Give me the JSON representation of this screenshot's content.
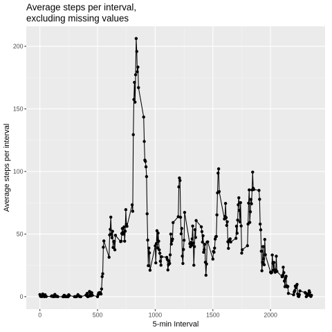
{
  "chart_data": {
    "type": "line",
    "title": "Average steps per interval,",
    "subtitle": "excluding missing values",
    "xlabel": "5-min Interval",
    "ylabel": "Average steps per interval",
    "xlim": [
      -118,
      2473
    ],
    "ylim": [
      -10,
      216
    ],
    "xticks": [
      "0",
      "500",
      "1000",
      "1500",
      "2000"
    ],
    "yticks": [
      "0",
      "50",
      "100",
      "150",
      "200"
    ],
    "xtick_values": [
      0,
      500,
      1000,
      1500,
      2000
    ],
    "ytick_values": [
      0,
      50,
      100,
      150,
      200
    ],
    "grid": true,
    "legend": "none",
    "colors": {
      "panel": "#ebebeb",
      "grid_major": "#ffffff",
      "grid_minor": "#f5f5f5",
      "series": "#000000",
      "tick": "#333333",
      "tick_label": "#4d4d4d"
    },
    "series": [
      {
        "points": [
          [
            0,
            1.7
          ],
          [
            5,
            0.3
          ],
          [
            10,
            0.1
          ],
          [
            15,
            0.2
          ],
          [
            20,
            0.1
          ],
          [
            25,
            2.1
          ],
          [
            30,
            0.5
          ],
          [
            35,
            0.9
          ],
          [
            40,
            0.0
          ],
          [
            45,
            1.5
          ],
          [
            50,
            0.3
          ],
          [
            55,
            0.1
          ],
          [
            100,
            0.3
          ],
          [
            105,
            0.7
          ],
          [
            110,
            0.2
          ],
          [
            115,
            0.3
          ],
          [
            120,
            0.0
          ],
          [
            125,
            1.1
          ],
          [
            130,
            1.8
          ],
          [
            135,
            0.2
          ],
          [
            140,
            0.2
          ],
          [
            145,
            0.4
          ],
          [
            150,
            0.3
          ],
          [
            155,
            0.0
          ],
          [
            200,
            0.0
          ],
          [
            205,
            0.0
          ],
          [
            210,
            1.1
          ],
          [
            215,
            0.9
          ],
          [
            220,
            0.0
          ],
          [
            225,
            0.1
          ],
          [
            230,
            0.0
          ],
          [
            235,
            0.2
          ],
          [
            240,
            0.0
          ],
          [
            245,
            0.0
          ],
          [
            250,
            1.5
          ],
          [
            255,
            0.9
          ],
          [
            300,
            0.0
          ],
          [
            305,
            0.0
          ],
          [
            310,
            0.0
          ],
          [
            315,
            0.0
          ],
          [
            320,
            0.2
          ],
          [
            325,
            0.6
          ],
          [
            330,
            1.6
          ],
          [
            335,
            0.6
          ],
          [
            340,
            0.5
          ],
          [
            345,
            0.1
          ],
          [
            350,
            0.0
          ],
          [
            355,
            0.0
          ],
          [
            400,
            1.2
          ],
          [
            405,
            0.9
          ],
          [
            410,
            2.6
          ],
          [
            415,
            0.0
          ],
          [
            420,
            0.3
          ],
          [
            425,
            0.4
          ],
          [
            430,
            4.1
          ],
          [
            435,
            0.7
          ],
          [
            440,
            3.5
          ],
          [
            445,
            0.8
          ],
          [
            450,
            3.1
          ],
          [
            455,
            1.1
          ],
          [
            500,
            0.0
          ],
          [
            505,
            1.6
          ],
          [
            510,
            3.0
          ],
          [
            515,
            2.2
          ],
          [
            520,
            3.3
          ],
          [
            525,
            3.0
          ],
          [
            530,
            2.1
          ],
          [
            535,
            6.1
          ],
          [
            540,
            16.0
          ],
          [
            545,
            18.3
          ],
          [
            550,
            39.5
          ],
          [
            555,
            44.5
          ],
          [
            600,
            31.5
          ],
          [
            605,
            49.3
          ],
          [
            610,
            53.8
          ],
          [
            615,
            63.5
          ],
          [
            620,
            50.0
          ],
          [
            625,
            47.1
          ],
          [
            630,
            52.2
          ],
          [
            635,
            39.3
          ],
          [
            640,
            44.0
          ],
          [
            645,
            44.2
          ],
          [
            650,
            37.4
          ],
          [
            655,
            49.0
          ],
          [
            700,
            44.0
          ],
          [
            705,
            44.3
          ],
          [
            710,
            50.5
          ],
          [
            715,
            54.5
          ],
          [
            720,
            49.9
          ],
          [
            725,
            51.0
          ],
          [
            730,
            55.7
          ],
          [
            735,
            44.3
          ],
          [
            740,
            52.3
          ],
          [
            745,
            69.5
          ],
          [
            750,
            57.8
          ],
          [
            755,
            56.2
          ],
          [
            800,
            73.4
          ],
          [
            805,
            68.2
          ],
          [
            810,
            129.4
          ],
          [
            815,
            157.5
          ],
          [
            820,
            171.2
          ],
          [
            825,
            155.4
          ],
          [
            830,
            177.3
          ],
          [
            835,
            206.2
          ],
          [
            840,
            195.9
          ],
          [
            845,
            179.6
          ],
          [
            850,
            183.4
          ],
          [
            855,
            167.0
          ],
          [
            900,
            143.5
          ],
          [
            905,
            124.0
          ],
          [
            910,
            109.1
          ],
          [
            915,
            108.1
          ],
          [
            920,
            103.7
          ],
          [
            925,
            95.9
          ],
          [
            930,
            66.2
          ],
          [
            935,
            45.2
          ],
          [
            940,
            24.8
          ],
          [
            945,
            38.8
          ],
          [
            950,
            34.98
          ],
          [
            955,
            21.1
          ],
          [
            1000,
            40.6
          ],
          [
            1005,
            26.98
          ],
          [
            1010,
            42.4
          ],
          [
            1015,
            52.7
          ],
          [
            1020,
            38.9
          ],
          [
            1025,
            50.8
          ],
          [
            1030,
            44.3
          ],
          [
            1035,
            37.4
          ],
          [
            1040,
            34.7
          ],
          [
            1045,
            28.3
          ],
          [
            1050,
            25.1
          ],
          [
            1055,
            31.9
          ],
          [
            1100,
            31.4
          ],
          [
            1105,
            29.7
          ],
          [
            1110,
            21.3
          ],
          [
            1115,
            25.5
          ],
          [
            1120,
            28.4
          ],
          [
            1125,
            26.5
          ],
          [
            1130,
            33.4
          ],
          [
            1135,
            49.98
          ],
          [
            1140,
            42.0
          ],
          [
            1145,
            44.6
          ],
          [
            1150,
            46.0
          ],
          [
            1155,
            59.2
          ],
          [
            1200,
            63.9
          ],
          [
            1205,
            87.7
          ],
          [
            1210,
            94.8
          ],
          [
            1215,
            92.8
          ],
          [
            1220,
            63.4
          ],
          [
            1225,
            50.2
          ],
          [
            1230,
            54.5
          ],
          [
            1235,
            32.4
          ],
          [
            1240,
            26.5
          ],
          [
            1245,
            37.7
          ],
          [
            1250,
            45.1
          ],
          [
            1255,
            67.3
          ],
          [
            1300,
            42.3
          ],
          [
            1305,
            39.9
          ],
          [
            1310,
            43.3
          ],
          [
            1315,
            40.98
          ],
          [
            1320,
            46.2
          ],
          [
            1325,
            56.4
          ],
          [
            1330,
            42.8
          ],
          [
            1335,
            25.1
          ],
          [
            1340,
            39.96
          ],
          [
            1345,
            53.5
          ],
          [
            1350,
            47.3
          ],
          [
            1355,
            60.8
          ],
          [
            1400,
            55.8
          ],
          [
            1405,
            51.96
          ],
          [
            1410,
            43.6
          ],
          [
            1415,
            48.7
          ],
          [
            1420,
            35.5
          ],
          [
            1425,
            37.5
          ],
          [
            1430,
            41.8
          ],
          [
            1435,
            27.5
          ],
          [
            1440,
            17.1
          ],
          [
            1445,
            26.1
          ],
          [
            1450,
            43.6
          ],
          [
            1455,
            43.8
          ],
          [
            1500,
            30.0
          ],
          [
            1505,
            36.1
          ],
          [
            1510,
            35.5
          ],
          [
            1515,
            38.8
          ],
          [
            1520,
            45.96
          ],
          [
            1525,
            47.8
          ],
          [
            1530,
            48.1
          ],
          [
            1535,
            65.3
          ],
          [
            1540,
            82.9
          ],
          [
            1545,
            98.7
          ],
          [
            1550,
            102.1
          ],
          [
            1555,
            83.96
          ],
          [
            1600,
            62.1
          ],
          [
            1605,
            64.1
          ],
          [
            1610,
            74.5
          ],
          [
            1615,
            63.2
          ],
          [
            1620,
            56.9
          ],
          [
            1625,
            59.8
          ],
          [
            1630,
            43.9
          ],
          [
            1635,
            38.6
          ],
          [
            1640,
            44.7
          ],
          [
            1645,
            45.5
          ],
          [
            1650,
            46.2
          ],
          [
            1655,
            43.7
          ],
          [
            1700,
            46.6
          ],
          [
            1705,
            56.3
          ],
          [
            1710,
            50.7
          ],
          [
            1715,
            61.2
          ],
          [
            1720,
            73.4
          ],
          [
            1725,
            79.0
          ],
          [
            1730,
            68.9
          ],
          [
            1735,
            59.7
          ],
          [
            1740,
            75.1
          ],
          [
            1745,
            56.5
          ],
          [
            1750,
            34.8
          ],
          [
            1755,
            37.5
          ],
          [
            1800,
            40.7
          ],
          [
            1805,
            58.0
          ],
          [
            1810,
            74.7
          ],
          [
            1815,
            85.3
          ],
          [
            1820,
            59.3
          ],
          [
            1825,
            67.8
          ],
          [
            1830,
            77.7
          ],
          [
            1835,
            74.2
          ],
          [
            1840,
            85.3
          ],
          [
            1845,
            99.5
          ],
          [
            1850,
            86.6
          ],
          [
            1855,
            85.6
          ],
          [
            1900,
            84.9
          ],
          [
            1905,
            77.8
          ],
          [
            1910,
            58.0
          ],
          [
            1915,
            53.4
          ],
          [
            1920,
            36.3
          ],
          [
            1925,
            20.7
          ],
          [
            1930,
            27.4
          ],
          [
            1935,
            40.0
          ],
          [
            1940,
            30.2
          ],
          [
            1945,
            25.5
          ],
          [
            1950,
            45.7
          ],
          [
            1955,
            33.5
          ],
          [
            2000,
            19.6
          ],
          [
            2005,
            19.0
          ],
          [
            2010,
            19.3
          ],
          [
            2015,
            33.3
          ],
          [
            2020,
            26.8
          ],
          [
            2025,
            21.2
          ],
          [
            2030,
            27.3
          ],
          [
            2035,
            21.3
          ],
          [
            2040,
            19.5
          ],
          [
            2045,
            21.3
          ],
          [
            2050,
            32.3
          ],
          [
            2055,
            20.2
          ],
          [
            2100,
            15.9
          ],
          [
            2105,
            17.2
          ],
          [
            2110,
            23.5
          ],
          [
            2115,
            19.2
          ],
          [
            2120,
            12.5
          ],
          [
            2125,
            8.0
          ],
          [
            2130,
            14.7
          ],
          [
            2135,
            16.3
          ],
          [
            2140,
            8.7
          ],
          [
            2145,
            7.8
          ],
          [
            2150,
            8.1
          ],
          [
            2155,
            2.6
          ],
          [
            2200,
            1.5
          ],
          [
            2205,
            3.7
          ],
          [
            2210,
            4.8
          ],
          [
            2215,
            8.5
          ],
          [
            2220,
            7.1
          ],
          [
            2225,
            8.7
          ],
          [
            2230,
            9.8
          ],
          [
            2235,
            2.2
          ],
          [
            2240,
            0.3
          ],
          [
            2245,
            0.1
          ],
          [
            2250,
            1.6
          ],
          [
            2255,
            4.6
          ],
          [
            2300,
            3.3
          ],
          [
            2305,
            2.8
          ],
          [
            2310,
            0.0
          ],
          [
            2315,
            0.8
          ],
          [
            2320,
            0.96
          ],
          [
            2325,
            1.6
          ],
          [
            2330,
            2.6
          ],
          [
            2335,
            4.7
          ],
          [
            2340,
            3.3
          ],
          [
            2345,
            0.6
          ],
          [
            2350,
            0.2
          ],
          [
            2355,
            1.1
          ]
        ]
      }
    ]
  }
}
